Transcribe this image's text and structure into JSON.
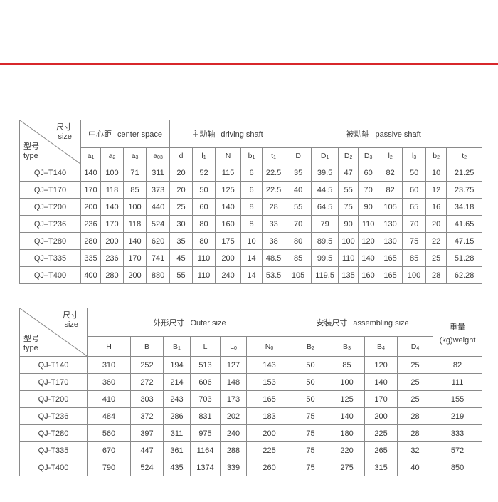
{
  "colors": {
    "rule": "#d8272b",
    "border": "#8a8a8a",
    "text": "#3a3a3a"
  },
  "corner": {
    "size_zh": "尺寸",
    "size_en": "size",
    "type_zh": "型号",
    "type_en": "type"
  },
  "table1": {
    "groups": [
      {
        "zh": "中心距",
        "en": "center space",
        "span": 4
      },
      {
        "zh": "主动轴",
        "en": "driving shaft",
        "span": 5
      },
      {
        "zh": "被动轴",
        "en": "passive shaft",
        "span": 8
      }
    ],
    "columns": [
      [
        "a",
        "1"
      ],
      [
        "a",
        "2"
      ],
      [
        "a",
        "3"
      ],
      [
        "a",
        "03"
      ],
      [
        "d",
        ""
      ],
      [
        "l",
        "1"
      ],
      [
        "N",
        ""
      ],
      [
        "b",
        "1"
      ],
      [
        "t",
        "1"
      ],
      [
        "D",
        ""
      ],
      [
        "D",
        "1"
      ],
      [
        "D",
        "2"
      ],
      [
        "D",
        "3"
      ],
      [
        "l",
        "2"
      ],
      [
        "l",
        "3"
      ],
      [
        "b",
        "2"
      ],
      [
        "t",
        "2"
      ]
    ],
    "rows": [
      [
        "QJ–T140",
        "140",
        "100",
        "71",
        "311",
        "20",
        "52",
        "115",
        "6",
        "22.5",
        "35",
        "39.5",
        "47",
        "60",
        "82",
        "50",
        "10",
        "21.25"
      ],
      [
        "QJ–T170",
        "170",
        "118",
        "85",
        "373",
        "20",
        "50",
        "125",
        "6",
        "22.5",
        "40",
        "44.5",
        "55",
        "70",
        "82",
        "60",
        "12",
        "23.75"
      ],
      [
        "QJ–T200",
        "200",
        "140",
        "100",
        "440",
        "25",
        "60",
        "140",
        "8",
        "28",
        "55",
        "64.5",
        "75",
        "90",
        "105",
        "65",
        "16",
        "34.18"
      ],
      [
        "QJ–T236",
        "236",
        "170",
        "118",
        "524",
        "30",
        "80",
        "160",
        "8",
        "33",
        "70",
        "79",
        "90",
        "110",
        "130",
        "70",
        "20",
        "41.65"
      ],
      [
        "QJ–T280",
        "280",
        "200",
        "140",
        "620",
        "35",
        "80",
        "175",
        "10",
        "38",
        "80",
        "89.5",
        "100",
        "120",
        "130",
        "75",
        "22",
        "47.15"
      ],
      [
        "QJ–T335",
        "335",
        "236",
        "170",
        "741",
        "45",
        "110",
        "200",
        "14",
        "48.5",
        "85",
        "99.5",
        "110",
        "140",
        "165",
        "85",
        "25",
        "51.28"
      ],
      [
        "QJ–T400",
        "400",
        "280",
        "200",
        "880",
        "55",
        "110",
        "240",
        "14",
        "53.5",
        "105",
        "119.5",
        "135",
        "160",
        "165",
        "100",
        "28",
        "62.28"
      ]
    ]
  },
  "table2": {
    "groups": [
      {
        "zh": "外形尺寸",
        "en": "Outer size",
        "span": 6
      },
      {
        "zh": "安装尺寸",
        "en": "assembling size",
        "span": 4
      }
    ],
    "weight_zh": "重量",
    "weight_en": "(kg)weight",
    "columns": [
      [
        "H",
        ""
      ],
      [
        "B",
        ""
      ],
      [
        "B",
        "1"
      ],
      [
        "L",
        ""
      ],
      [
        "L",
        "0"
      ],
      [
        "N",
        "0"
      ],
      [
        "B",
        "2"
      ],
      [
        "B",
        "3"
      ],
      [
        "B",
        "4"
      ],
      [
        "D",
        "4"
      ]
    ],
    "rows": [
      [
        "QJ-T140",
        "310",
        "252",
        "194",
        "513",
        "127",
        "143",
        "50",
        "85",
        "120",
        "25",
        "82"
      ],
      [
        "QJ-T170",
        "360",
        "272",
        "214",
        "606",
        "148",
        "153",
        "50",
        "100",
        "140",
        "25",
        "111"
      ],
      [
        "QJ-T200",
        "410",
        "303",
        "243",
        "703",
        "173",
        "165",
        "50",
        "125",
        "170",
        "25",
        "155"
      ],
      [
        "QJ-T236",
        "484",
        "372",
        "286",
        "831",
        "202",
        "183",
        "75",
        "140",
        "200",
        "28",
        "219"
      ],
      [
        "QJ-T280",
        "560",
        "397",
        "311",
        "975",
        "240",
        "200",
        "75",
        "180",
        "225",
        "28",
        "333"
      ],
      [
        "QJ-T335",
        "670",
        "447",
        "361",
        "1164",
        "288",
        "225",
        "75",
        "220",
        "265",
        "32",
        "572"
      ],
      [
        "QJ-T400",
        "790",
        "524",
        "435",
        "1374",
        "339",
        "260",
        "75",
        "275",
        "315",
        "40",
        "850"
      ]
    ]
  }
}
